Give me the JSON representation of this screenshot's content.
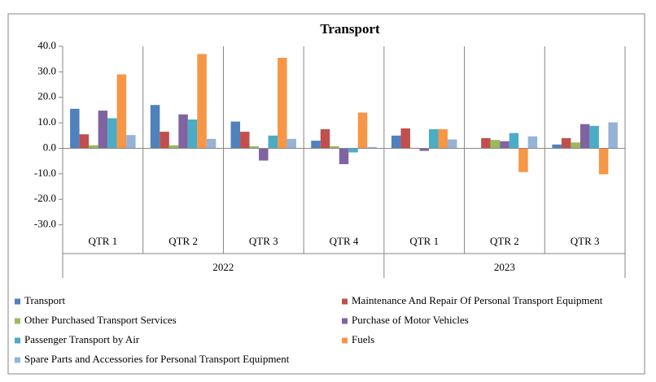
{
  "chart_data": {
    "type": "bar",
    "title": "Transport",
    "categories": [
      "QTR 1",
      "QTR 2",
      "QTR 3",
      "QTR 4",
      "QTR 1",
      "QTR 2",
      "QTR 3"
    ],
    "groups": [
      {
        "name": "2022",
        "count": 4
      },
      {
        "name": "2023",
        "count": 3
      }
    ],
    "series": [
      {
        "name": "Transport",
        "color": "#4f81bd",
        "values": [
          15.5,
          17,
          10.5,
          3,
          5,
          0,
          1.5
        ]
      },
      {
        "name": "Maintenance And Repair Of Personal Transport Equipment",
        "color": "#c0504d",
        "values": [
          5.5,
          6.5,
          6.5,
          7.5,
          7.8,
          4,
          4
        ]
      },
      {
        "name": "Other Purchased Transport Services",
        "color": "#9bbb59",
        "values": [
          1.2,
          1.2,
          0.8,
          0.8,
          0.2,
          3.3,
          2.3
        ]
      },
      {
        "name": "Purchase of Motor Vehicles",
        "color": "#8064a2",
        "values": [
          14.8,
          13.3,
          -4.8,
          -6.2,
          -1,
          2.8,
          9.5
        ]
      },
      {
        "name": "Passenger Transport by Air",
        "color": "#4bacc6",
        "values": [
          11.8,
          11.3,
          5,
          -1.6,
          7.5,
          6,
          8.8
        ]
      },
      {
        "name": "Fuels",
        "color": "#f79646",
        "values": [
          29,
          37,
          35.5,
          14,
          7.5,
          -9.3,
          -10.2
        ]
      },
      {
        "name": "Spare Parts and Accessories for Personal Transport Equipment",
        "color": "#95b3d7",
        "values": [
          5.2,
          3.7,
          3.7,
          0.5,
          3.5,
          4.7,
          10.2
        ]
      }
    ],
    "ylim": [
      -40,
      40
    ],
    "yticks": [
      {
        "value": 40,
        "label": "40.0"
      },
      {
        "value": 30,
        "label": "30.0"
      },
      {
        "value": 20,
        "label": "20.0"
      },
      {
        "value": 10,
        "label": "10.0"
      },
      {
        "value": 0,
        "label": "0.0"
      },
      {
        "value": -10,
        "label": "-10.0"
      },
      {
        "value": -20,
        "label": "-20.0"
      },
      {
        "value": -30,
        "label": "-30.0"
      }
    ],
    "grid": false
  }
}
